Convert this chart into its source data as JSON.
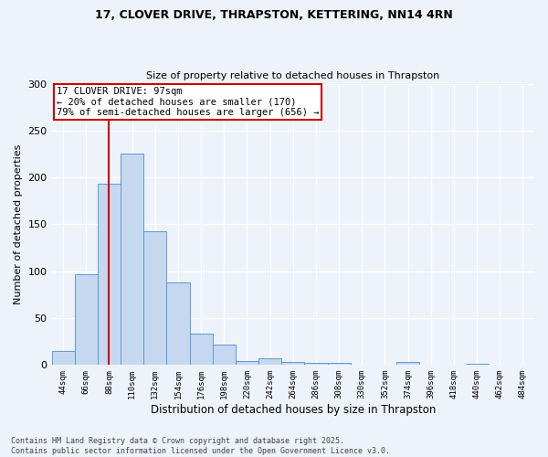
{
  "title_line1": "17, CLOVER DRIVE, THRAPSTON, KETTERING, NN14 4RN",
  "title_line2": "Size of property relative to detached houses in Thrapston",
  "xlabel": "Distribution of detached houses by size in Thrapston",
  "ylabel": "Number of detached properties",
  "categories": [
    "44sqm",
    "66sqm",
    "88sqm",
    "110sqm",
    "132sqm",
    "154sqm",
    "176sqm",
    "198sqm",
    "220sqm",
    "242sqm",
    "264sqm",
    "286sqm",
    "308sqm",
    "330sqm",
    "352sqm",
    "374sqm",
    "396sqm",
    "418sqm",
    "440sqm",
    "462sqm",
    "484sqm"
  ],
  "values": [
    15,
    97,
    193,
    225,
    143,
    88,
    33,
    22,
    4,
    7,
    3,
    2,
    2,
    0,
    0,
    3,
    0,
    0,
    1,
    0,
    0
  ],
  "bar_color": "#c5d8f0",
  "bar_edge_color": "#5b9bd5",
  "property_size_label": "17 CLOVER DRIVE: 97sqm",
  "pct_smaller": "20%",
  "pct_smaller_n": 170,
  "pct_larger_semi": "79%",
  "pct_larger_semi_n": 656,
  "vline_color": "#cc0000",
  "vline_x_index": 2.0,
  "annotation_box_color": "#cc0000",
  "background_color": "#eef2f9",
  "grid_color": "#ffffff",
  "footer_line1": "Contains HM Land Registry data © Crown copyright and database right 2025.",
  "footer_line2": "Contains public sector information licensed under the Open Government Licence v3.0.",
  "ylim": [
    0,
    300
  ],
  "yticks": [
    0,
    50,
    100,
    150,
    200,
    250,
    300
  ]
}
